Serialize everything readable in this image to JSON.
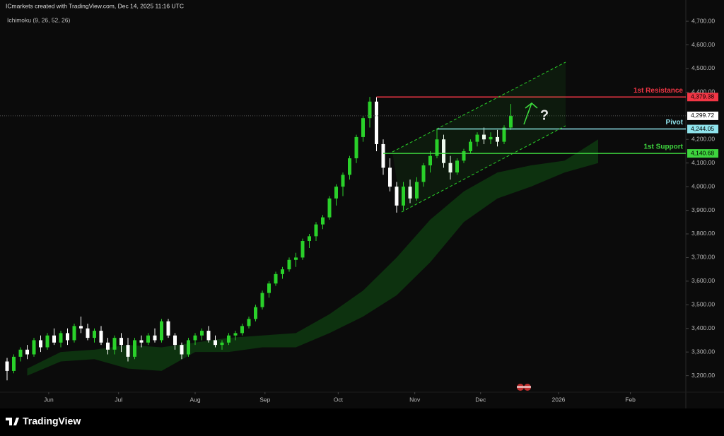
{
  "header": {
    "credit": "ICmarkets created with TradingView.com, Dec 14, 2025 11:16 UTC",
    "indicator": "Ichimoku (9, 26, 52, 26)"
  },
  "footer": {
    "brand": "TradingView"
  },
  "chart_data": {
    "type": "candlestick",
    "up_color": "#2ad12a",
    "down_color": "#ffffff",
    "ohlc": [
      [
        3260,
        3275,
        3180,
        3220
      ],
      [
        3220,
        3290,
        3210,
        3280
      ],
      [
        3280,
        3320,
        3260,
        3310
      ],
      [
        3310,
        3330,
        3270,
        3290
      ],
      [
        3290,
        3360,
        3280,
        3350
      ],
      [
        3350,
        3370,
        3300,
        3320
      ],
      [
        3320,
        3380,
        3310,
        3370
      ],
      [
        3370,
        3400,
        3330,
        3340
      ],
      [
        3340,
        3390,
        3320,
        3380
      ],
      [
        3380,
        3400,
        3330,
        3350
      ],
      [
        3350,
        3420,
        3340,
        3410
      ],
      [
        3410,
        3450,
        3380,
        3400
      ],
      [
        3400,
        3420,
        3350,
        3360
      ],
      [
        3360,
        3400,
        3340,
        3390
      ],
      [
        3390,
        3410,
        3330,
        3340
      ],
      [
        3340,
        3360,
        3290,
        3310
      ],
      [
        3310,
        3370,
        3290,
        3360
      ],
      [
        3360,
        3380,
        3300,
        3330
      ],
      [
        3330,
        3360,
        3260,
        3280
      ],
      [
        3280,
        3360,
        3270,
        3350
      ],
      [
        3350,
        3370,
        3320,
        3340
      ],
      [
        3340,
        3380,
        3330,
        3370
      ],
      [
        3370,
        3400,
        3340,
        3350
      ],
      [
        3350,
        3440,
        3340,
        3430
      ],
      [
        3430,
        3440,
        3360,
        3370
      ],
      [
        3370,
        3380,
        3310,
        3330
      ],
      [
        3330,
        3340,
        3270,
        3290
      ],
      [
        3290,
        3360,
        3280,
        3350
      ],
      [
        3350,
        3380,
        3330,
        3370
      ],
      [
        3370,
        3400,
        3350,
        3390
      ],
      [
        3390,
        3410,
        3340,
        3350
      ],
      [
        3350,
        3370,
        3320,
        3330
      ],
      [
        3330,
        3350,
        3310,
        3340
      ],
      [
        3340,
        3380,
        3330,
        3370
      ],
      [
        3370,
        3390,
        3350,
        3380
      ],
      [
        3380,
        3420,
        3370,
        3410
      ],
      [
        3410,
        3450,
        3400,
        3440
      ],
      [
        3440,
        3500,
        3430,
        3490
      ],
      [
        3490,
        3560,
        3480,
        3550
      ],
      [
        3550,
        3600,
        3530,
        3590
      ],
      [
        3590,
        3640,
        3580,
        3630
      ],
      [
        3630,
        3660,
        3610,
        3650
      ],
      [
        3650,
        3700,
        3640,
        3690
      ],
      [
        3690,
        3720,
        3660,
        3700
      ],
      [
        3700,
        3780,
        3690,
        3770
      ],
      [
        3770,
        3800,
        3740,
        3790
      ],
      [
        3790,
        3850,
        3770,
        3840
      ],
      [
        3840,
        3880,
        3820,
        3870
      ],
      [
        3870,
        3960,
        3860,
        3950
      ],
      [
        3950,
        4010,
        3920,
        4000
      ],
      [
        4000,
        4060,
        3960,
        4050
      ],
      [
        4050,
        4130,
        4030,
        4120
      ],
      [
        4120,
        4220,
        4100,
        4210
      ],
      [
        4210,
        4300,
        4190,
        4290
      ],
      [
        4290,
        4380,
        4250,
        4360
      ],
      [
        4360,
        4379,
        4150,
        4180
      ],
      [
        4180,
        4200,
        4050,
        4080
      ],
      [
        4080,
        4120,
        3980,
        4000
      ],
      [
        4000,
        4020,
        3890,
        3920
      ],
      [
        3920,
        4020,
        3900,
        4000
      ],
      [
        4000,
        4030,
        3930,
        3950
      ],
      [
        3950,
        4040,
        3940,
        4020
      ],
      [
        4020,
        4100,
        4000,
        4090
      ],
      [
        4090,
        4150,
        4060,
        4130
      ],
      [
        4130,
        4244,
        4120,
        4200
      ],
      [
        4200,
        4220,
        4080,
        4100
      ],
      [
        4100,
        4130,
        4030,
        4060
      ],
      [
        4060,
        4120,
        4050,
        4110
      ],
      [
        4110,
        4160,
        4100,
        4150
      ],
      [
        4150,
        4200,
        4140,
        4190
      ],
      [
        4190,
        4230,
        4170,
        4220
      ],
      [
        4220,
        4250,
        4180,
        4200
      ],
      [
        4200,
        4230,
        4180,
        4210
      ],
      [
        4210,
        4240,
        4170,
        4190
      ],
      [
        4190,
        4260,
        4180,
        4250
      ],
      [
        4250,
        4350,
        4240,
        4299.72
      ]
    ],
    "cloud": {
      "color": "#0e3a10",
      "x": [
        3,
        8,
        13,
        18,
        23,
        28,
        33,
        38,
        43,
        48,
        53,
        58,
        63,
        68,
        73,
        78,
        83,
        88
      ],
      "upper": [
        3230,
        3300,
        3310,
        3330,
        3320,
        3340,
        3360,
        3370,
        3380,
        3460,
        3560,
        3700,
        3860,
        3980,
        4060,
        4090,
        4110,
        4200
      ],
      "lower": [
        3200,
        3260,
        3270,
        3230,
        3220,
        3300,
        3300,
        3320,
        3320,
        3380,
        3450,
        3540,
        3680,
        3850,
        3950,
        4000,
        4060,
        4100
      ]
    },
    "levels": [
      {
        "name": "1st Resistance",
        "value": 4379.38,
        "value_label": "4,379.38",
        "color": "#f23645",
        "from": 55
      },
      {
        "name": "Pivot",
        "value": 4244.05,
        "value_label": "4,244.05",
        "color": "#8fe3ec",
        "from": 64
      },
      {
        "name": "1st Support",
        "value": 4140.68,
        "value_label": "4,140.68",
        "color": "#3ed43e",
        "from": 56
      }
    ],
    "last_price": {
      "value": 4299.72,
      "value_label": "4,299.72"
    },
    "annotation": "?",
    "xlim": [
      -1,
      101
    ],
    "xticks": [
      {
        "value": 6.2,
        "label": "Jun"
      },
      {
        "value": 16.6,
        "label": "Jul"
      },
      {
        "value": 28,
        "label": "Aug"
      },
      {
        "value": 38.4,
        "label": "Sep"
      },
      {
        "value": 49.3,
        "label": "Oct"
      },
      {
        "value": 60.7,
        "label": "Nov"
      },
      {
        "value": 70.5,
        "label": "Dec"
      },
      {
        "value": 82.1,
        "label": "2026"
      },
      {
        "value": 92.8,
        "label": "Feb"
      }
    ],
    "ylim": [
      3130,
      4790
    ],
    "yticks": [
      {
        "value": 3200,
        "label": "3,200.00"
      },
      {
        "value": 3300,
        "label": "3,300.00"
      },
      {
        "value": 3400,
        "label": "3,400.00"
      },
      {
        "value": 3500,
        "label": "3,500.00"
      },
      {
        "value": 3600,
        "label": "3,600.00"
      },
      {
        "value": 3700,
        "label": "3,700.00"
      },
      {
        "value": 3800,
        "label": "3,800.00"
      },
      {
        "value": 3900,
        "label": "3,900.00"
      },
      {
        "value": 4000,
        "label": "4,000.00"
      },
      {
        "value": 4100,
        "label": "4,100.00"
      },
      {
        "value": 4200,
        "label": "4,200.00"
      },
      {
        "value": 4400,
        "label": "4,400.00"
      },
      {
        "value": 4500,
        "label": "4,500.00"
      },
      {
        "value": 4600,
        "label": "4,600.00"
      },
      {
        "value": 4700,
        "label": "4,700.00"
      }
    ]
  }
}
